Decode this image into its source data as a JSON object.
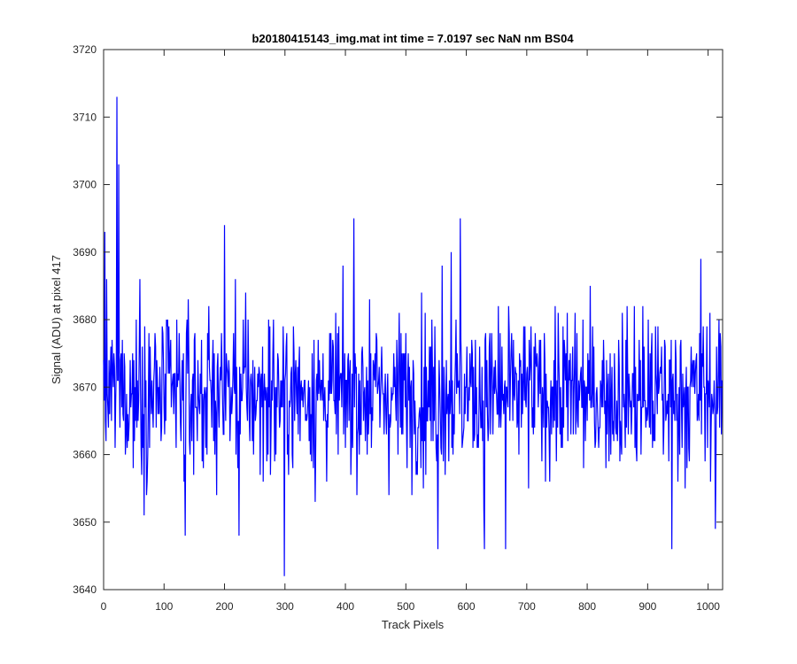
{
  "chart_data": {
    "type": "line",
    "title": "b20180415143_img.mat int time = 7.0197 sec  NaN nm BS04",
    "xlabel": "Track Pixels",
    "ylabel": "Signal (ADU) at pixel 417",
    "xlim": [
      0,
      1024
    ],
    "ylim": [
      3640,
      3720
    ],
    "xticks": [
      0,
      100,
      200,
      300,
      400,
      500,
      600,
      700,
      800,
      900,
      1000
    ],
    "yticks": [
      3640,
      3650,
      3660,
      3670,
      3680,
      3690,
      3700,
      3710,
      3720
    ],
    "grid": false,
    "legend": "none",
    "series": [
      {
        "color": "#0000ff",
        "n_points": 1024,
        "baseline": 3669,
        "noise_amplitude": 11,
        "highlights": [
          {
            "x": 2,
            "y": 3693
          },
          {
            "x": 22,
            "y": 3713
          },
          {
            "x": 25,
            "y": 3703
          },
          {
            "x": 60,
            "y": 3686
          },
          {
            "x": 200,
            "y": 3694
          },
          {
            "x": 135,
            "y": 3648
          },
          {
            "x": 218,
            "y": 3686
          },
          {
            "x": 224,
            "y": 3648
          },
          {
            "x": 299,
            "y": 3642
          },
          {
            "x": 414,
            "y": 3695
          },
          {
            "x": 440,
            "y": 3683
          },
          {
            "x": 560,
            "y": 3688
          },
          {
            "x": 590,
            "y": 3695
          },
          {
            "x": 553,
            "y": 3646
          },
          {
            "x": 575,
            "y": 3690
          },
          {
            "x": 630,
            "y": 3646
          },
          {
            "x": 665,
            "y": 3646
          },
          {
            "x": 780,
            "y": 3681
          },
          {
            "x": 940,
            "y": 3646
          },
          {
            "x": 988,
            "y": 3689
          },
          {
            "x": 1012,
            "y": 3649
          }
        ]
      }
    ]
  }
}
